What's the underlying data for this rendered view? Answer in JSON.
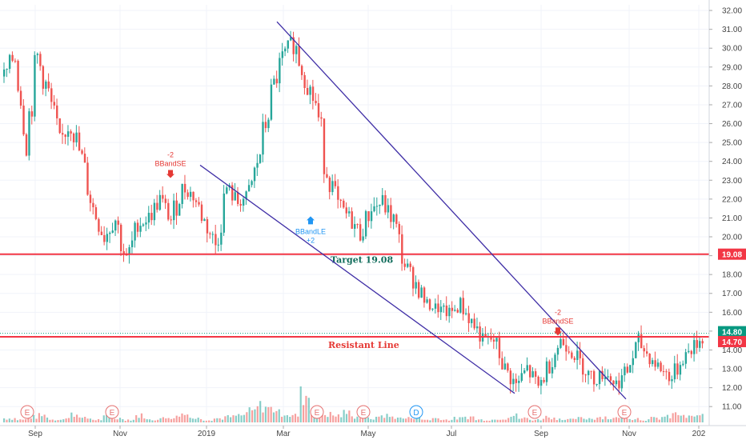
{
  "chart_data": {
    "type": "candlestick",
    "y_axis": {
      "ticks": [
        "11.00",
        "12.00",
        "13.00",
        "14.00",
        "15.00",
        "16.00",
        "17.00",
        "18.00",
        "19.00",
        "20.00",
        "21.00",
        "22.00",
        "23.00",
        "24.00",
        "25.00",
        "26.00",
        "27.00",
        "28.00",
        "29.00",
        "30.00",
        "31.00",
        "32.00"
      ],
      "ylim": [
        10.5,
        32.3
      ]
    },
    "x_axis": {
      "ticks": [
        "Sep",
        "Nov",
        "2019",
        "Mar",
        "May",
        "Jul",
        "Sep",
        "Nov",
        "202"
      ]
    },
    "price_series": [
      {
        "t": "Aug",
        "close": 28.5
      },
      {
        "t": "Aug",
        "close": 29.7
      },
      {
        "t": "Sep",
        "close": 25.4
      },
      {
        "t": "Sep",
        "close": 29.5
      },
      {
        "t": "Sep",
        "close": 27.5
      },
      {
        "t": "Oct",
        "close": 25.0
      },
      {
        "t": "Oct",
        "close": 26.1
      },
      {
        "t": "Oct",
        "close": 24.0
      },
      {
        "t": "Oct",
        "close": 21.5
      },
      {
        "t": "Nov",
        "close": 20.0
      },
      {
        "t": "Nov",
        "close": 21.0
      },
      {
        "t": "Nov",
        "close": 18.6
      },
      {
        "t": "Nov",
        "close": 20.6
      },
      {
        "t": "Dec",
        "close": 21.0
      },
      {
        "t": "Dec",
        "close": 22.0
      },
      {
        "t": "Dec",
        "close": 20.9
      },
      {
        "t": "Dec",
        "close": 22.6
      },
      {
        "t": "Dec",
        "close": 22.2
      },
      {
        "t": "Jan",
        "close": 20.8
      },
      {
        "t": "Jan",
        "close": 19.6
      },
      {
        "t": "Jan",
        "close": 22.6
      },
      {
        "t": "Jan",
        "close": 21.8
      },
      {
        "t": "Feb",
        "close": 22.2
      },
      {
        "t": "Feb",
        "close": 24.5
      },
      {
        "t": "Feb",
        "close": 27.5
      },
      {
        "t": "Feb",
        "close": 29.5
      },
      {
        "t": "Mar",
        "close": 30.4
      },
      {
        "t": "Mar",
        "close": 28.5
      },
      {
        "t": "Mar",
        "close": 27.0
      },
      {
        "t": "Mar",
        "close": 23.5
      },
      {
        "t": "Mar",
        "close": 21.7
      },
      {
        "t": "Apr",
        "close": 21.0
      },
      {
        "t": "Apr",
        "close": 20.2
      },
      {
        "t": "Apr",
        "close": 21.5
      },
      {
        "t": "Apr",
        "close": 21.8
      },
      {
        "t": "May",
        "close": 20.8
      },
      {
        "t": "May",
        "close": 18.5
      },
      {
        "t": "May",
        "close": 17.5
      },
      {
        "t": "Jun",
        "close": 16.4
      },
      {
        "t": "Jun",
        "close": 16.2
      },
      {
        "t": "Jun",
        "close": 15.9
      },
      {
        "t": "Jul",
        "close": 16.4
      },
      {
        "t": "Jul",
        "close": 15.5
      },
      {
        "t": "Jul",
        "close": 14.6
      },
      {
        "t": "Jul",
        "close": 14.5
      },
      {
        "t": "Aug",
        "close": 13.0
      },
      {
        "t": "Aug",
        "close": 12.1
      },
      {
        "t": "Aug",
        "close": 13.0
      },
      {
        "t": "Aug",
        "close": 12.0
      },
      {
        "t": "Sep",
        "close": 13.3
      },
      {
        "t": "Sep",
        "close": 14.5
      },
      {
        "t": "Sep",
        "close": 14.0
      },
      {
        "t": "Oct",
        "close": 13.1
      },
      {
        "t": "Oct",
        "close": 12.4
      },
      {
        "t": "Oct",
        "close": 12.8
      },
      {
        "t": "Oct",
        "close": 12.2
      },
      {
        "t": "Nov",
        "close": 12.9
      },
      {
        "t": "Nov",
        "close": 14.4
      },
      {
        "t": "Nov",
        "close": 13.6
      },
      {
        "t": "Nov",
        "close": 13.0
      },
      {
        "t": "Dec",
        "close": 12.5
      },
      {
        "t": "Dec",
        "close": 13.6
      },
      {
        "t": "Dec",
        "close": 14.2
      },
      {
        "t": "Dec",
        "close": 14.8
      }
    ],
    "volume_profile": [
      3,
      2,
      4,
      5,
      2,
      3,
      6,
      3,
      2,
      4,
      3,
      2,
      5,
      2,
      3,
      4,
      6,
      3,
      2,
      3,
      4,
      5,
      8,
      12,
      10,
      7,
      5,
      20,
      9,
      6,
      5,
      7,
      4,
      3,
      5,
      4,
      3,
      4,
      2,
      3,
      2,
      3,
      4,
      2,
      2,
      3,
      5,
      3,
      2,
      4,
      3,
      2,
      3,
      3,
      4,
      3,
      5,
      3,
      2,
      3,
      4,
      6,
      4,
      5
    ],
    "lines": {
      "target": {
        "value": 19.08,
        "label": "Target 19.08"
      },
      "resistance": {
        "value": 14.7,
        "label": "Resistant Line"
      },
      "last_price": {
        "value": 14.8
      }
    },
    "price_tags": [
      {
        "value": 19.08,
        "text": "19.08",
        "color": "#f23645"
      },
      {
        "value": 14.8,
        "text": "14.80",
        "color": "#089981"
      },
      {
        "value": 14.7,
        "text": "14.70",
        "color": "#f23645"
      }
    ],
    "trendlines": [
      {
        "from": {
          "t": "Mar",
          "y": 31.4
        },
        "to": {
          "t": "Nov",
          "y": 11.4
        }
      },
      {
        "from": {
          "t": "Jan",
          "y": 23.8
        },
        "to": {
          "t": "Aug",
          "y": 11.7
        }
      }
    ],
    "signals": [
      {
        "type": "sell",
        "line1": "-2",
        "line2": "BBandSE",
        "near": "Dec",
        "y": 23.2
      },
      {
        "type": "buy",
        "line1": "BBandLE",
        "line2": "+2",
        "near": "Apr",
        "y": 21.0
      },
      {
        "type": "sell",
        "line1": "-2",
        "line2": "BBandSE",
        "near": "Sep",
        "y": 14.85
      }
    ],
    "events": [
      {
        "label": "E",
        "near": "Sep"
      },
      {
        "label": "E",
        "near": "Nov"
      },
      {
        "label": "E",
        "near": "Mar"
      },
      {
        "label": "E",
        "near": "Apr"
      },
      {
        "label": "D",
        "near": "Jun"
      },
      {
        "label": "E",
        "near": "Sep"
      },
      {
        "label": "E",
        "near": "Nov"
      }
    ],
    "colors": {
      "up": "#26a69a",
      "down": "#ef5350",
      "line": "#f23645",
      "trend": "#3f2ea6",
      "target_text": "#0f6b5a",
      "resist_text": "#e53935"
    }
  }
}
